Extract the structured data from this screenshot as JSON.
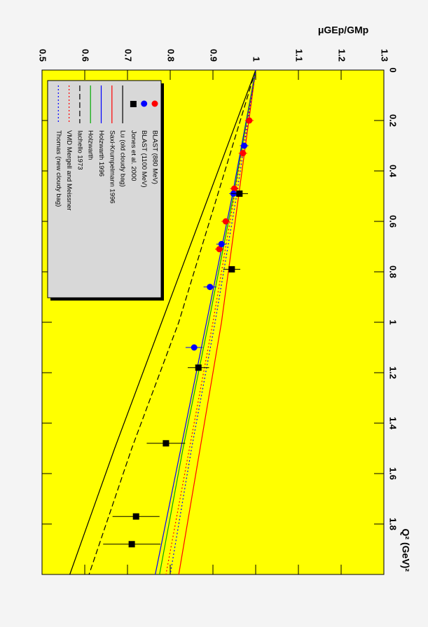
{
  "chart_data": {
    "type": "scatter",
    "ylabel": "μGEp/GMp",
    "xlabel": "Q² (GeV)²",
    "xlim": [
      0,
      2
    ],
    "ylim": [
      0.5,
      1.3
    ],
    "xticks": [
      0,
      0.2,
      0.4,
      0.6,
      0.8,
      1,
      1.2,
      1.4,
      1.6,
      1.8
    ],
    "yticks": [
      0.5,
      0.6,
      0.7,
      0.8,
      0.9,
      1,
      1.1,
      1.2,
      1.3
    ],
    "background": "#ffff00",
    "legend": "upper left",
    "series": [
      {
        "name": "BLAST (880 MeV)",
        "color": "#ff0000",
        "marker": "circle",
        "x": [
          0.2,
          0.33,
          0.47,
          0.6,
          0.71
        ],
        "values": [
          0.985,
          0.97,
          0.95,
          0.93,
          0.915
        ],
        "errors": [
          0.01,
          0.01,
          0.01,
          0.01,
          0.01
        ]
      },
      {
        "name": "BLAST (1100 MeV)",
        "color": "#0000ff",
        "marker": "circle",
        "x": [
          0.3,
          0.49,
          0.69,
          0.86,
          1.1
        ],
        "values": [
          0.973,
          0.948,
          0.92,
          0.893,
          0.856
        ],
        "errors": [
          0.01,
          0.01,
          0.012,
          0.015,
          0.02
        ]
      },
      {
        "name": "Jones et al. 2000",
        "color": "#000000",
        "marker": "square",
        "x": [
          0.49,
          0.79,
          1.18,
          1.48,
          1.77,
          1.88
        ],
        "values": [
          0.962,
          0.944,
          0.866,
          0.79,
          0.72,
          0.71
        ],
        "errors": [
          0.02,
          0.02,
          0.025,
          0.045,
          0.055,
          0.067
        ]
      },
      {
        "name": "Lu (old cloudy bag)",
        "color": "#000000",
        "dash": "solid",
        "x": [
          0,
          0.5,
          1,
          1.5,
          2
        ],
        "values": [
          1,
          0.89,
          0.78,
          0.67,
          0.565
        ]
      },
      {
        "name": "Saxi-Krumpelmann 1996",
        "color": "#ff0000",
        "dash": "solid",
        "x": [
          0,
          0.5,
          1,
          1.5,
          2
        ],
        "values": [
          1,
          0.96,
          0.92,
          0.87,
          0.82
        ]
      },
      {
        "name": "Holzwarth 1996",
        "color": "#0000ff",
        "dash": "solid",
        "x": [
          0,
          0.5,
          1,
          1.5,
          2
        ],
        "values": [
          1,
          0.945,
          0.885,
          0.825,
          0.765
        ]
      },
      {
        "name": "Holzwarth",
        "color": "#00aa00",
        "dash": "solid",
        "x": [
          0,
          0.5,
          1,
          1.5,
          2
        ],
        "values": [
          1,
          0.948,
          0.89,
          0.83,
          0.775
        ]
      },
      {
        "name": "Iachello 1973",
        "color": "#000000",
        "dash": "dashed",
        "x": [
          0,
          0.5,
          1,
          1.5,
          2
        ],
        "values": [
          1,
          0.91,
          0.82,
          0.71,
          0.61
        ]
      },
      {
        "name": "VMD Mergell and Meissner",
        "color": "#ff0000",
        "dash": "dotted",
        "x": [
          0,
          0.5,
          1,
          1.5,
          2
        ],
        "values": [
          1,
          0.95,
          0.9,
          0.845,
          0.79
        ]
      },
      {
        "name": "Thomas (new cloudy bag)",
        "color": "#0000ff",
        "dash": "dotted",
        "x": [
          0,
          0.5,
          1,
          1.5,
          2
        ],
        "values": [
          1,
          0.955,
          0.905,
          0.85,
          0.8
        ]
      }
    ]
  }
}
